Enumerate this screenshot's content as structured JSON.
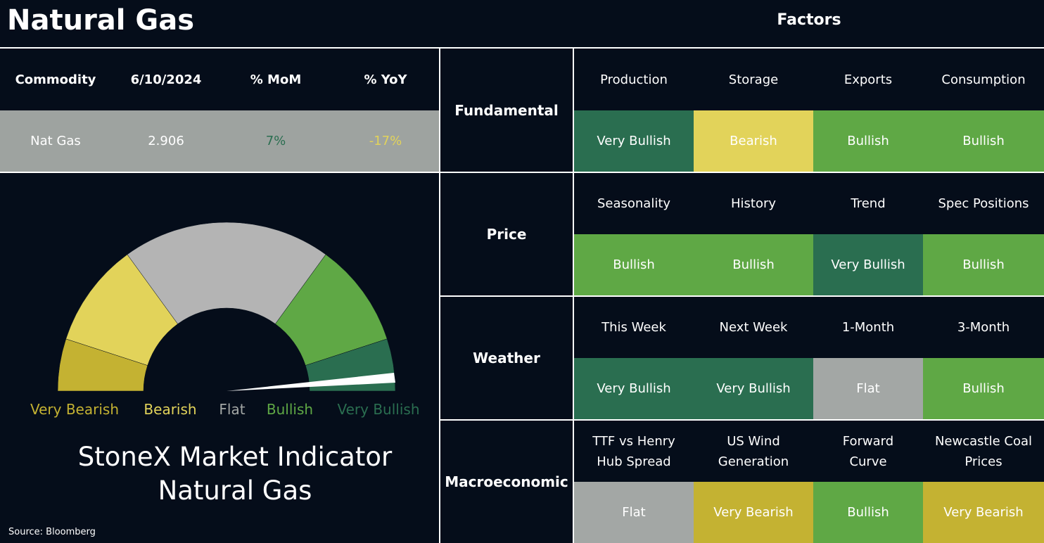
{
  "header": {
    "title": "Natural Gas",
    "factors_title": "Factors"
  },
  "commodity_table": {
    "columns": [
      "Commodity",
      "6/10/2024",
      "% MoM",
      "% YoY"
    ],
    "row": [
      "Nat Gas",
      "2.906",
      "7%",
      "-17%"
    ]
  },
  "gauge": {
    "levels": [
      {
        "label": "Very Bearish",
        "color": "#c4b232"
      },
      {
        "label": "Bearish",
        "color": "#e2d35a"
      },
      {
        "label": "Flat",
        "color": "#a3a7a5"
      },
      {
        "label": "Bullish",
        "color": "#5fa845"
      },
      {
        "label": "Very Bullish",
        "color": "#2a6e50"
      }
    ],
    "title": [
      "StoneX Market Indicator",
      "Natural Gas"
    ]
  },
  "source": "Source: Bloomberg",
  "factors": [
    {
      "group": "Fundamental",
      "items": [
        {
          "name": "Production",
          "signal": "Very Bullish"
        },
        {
          "name": "Storage",
          "signal": "Bearish"
        },
        {
          "name": "Exports",
          "signal": "Bullish"
        },
        {
          "name": "Consumption",
          "signal": "Bullish"
        }
      ]
    },
    {
      "group": "Price",
      "items": [
        {
          "name": "Seasonality",
          "signal": "Bullish"
        },
        {
          "name": "History",
          "signal": "Bullish"
        },
        {
          "name": "Trend",
          "signal": "Very Bullish"
        },
        {
          "name": "Spec Positions",
          "signal": "Bullish"
        }
      ]
    },
    {
      "group": "Weather",
      "items": [
        {
          "name": "This Week",
          "signal": "Very Bullish"
        },
        {
          "name": "Next Week",
          "signal": "Very Bullish"
        },
        {
          "name": "1-Month",
          "signal": "Flat"
        },
        {
          "name": "3-Month",
          "signal": "Bullish"
        }
      ]
    },
    {
      "group": "Macroeconomic",
      "items": [
        {
          "name": "TTF vs Henry\nHub Spread",
          "signal": "Flat"
        },
        {
          "name": "US Wind\nGeneration",
          "signal": "Very Bearish"
        },
        {
          "name": "Forward\nCurve",
          "signal": "Bullish"
        },
        {
          "name": "Newcastle Coal\nPrices",
          "signal": "Very Bearish"
        }
      ]
    }
  ]
}
